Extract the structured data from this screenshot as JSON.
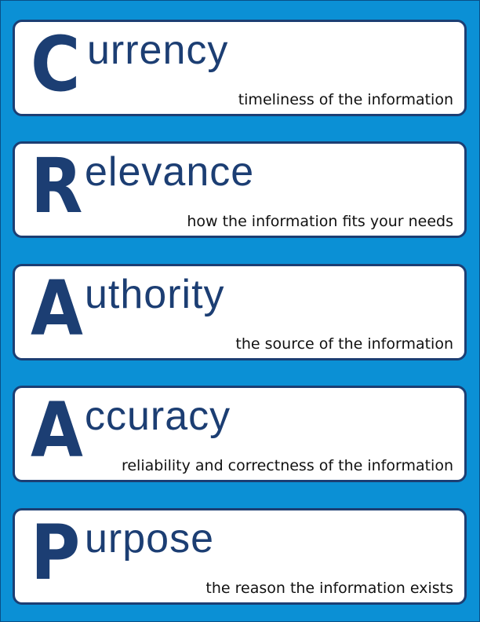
{
  "colors": {
    "background": "#0b90d5",
    "card_border": "#1c3e73",
    "heading_text": "#1c3e73",
    "description_text": "#111111",
    "card_fill": "#ffffff"
  },
  "cards": [
    {
      "letter": "C",
      "rest": "urrency",
      "description": "timeliness of the information"
    },
    {
      "letter": "R",
      "rest": "elevance",
      "description": "how the information fits your needs"
    },
    {
      "letter": "A",
      "rest": "uthority",
      "description": "the source of the information"
    },
    {
      "letter": "A",
      "rest": "ccuracy",
      "description": "reliability and correctness of the information"
    },
    {
      "letter": "P",
      "rest": "urpose",
      "description": "the reason the information exists"
    }
  ]
}
